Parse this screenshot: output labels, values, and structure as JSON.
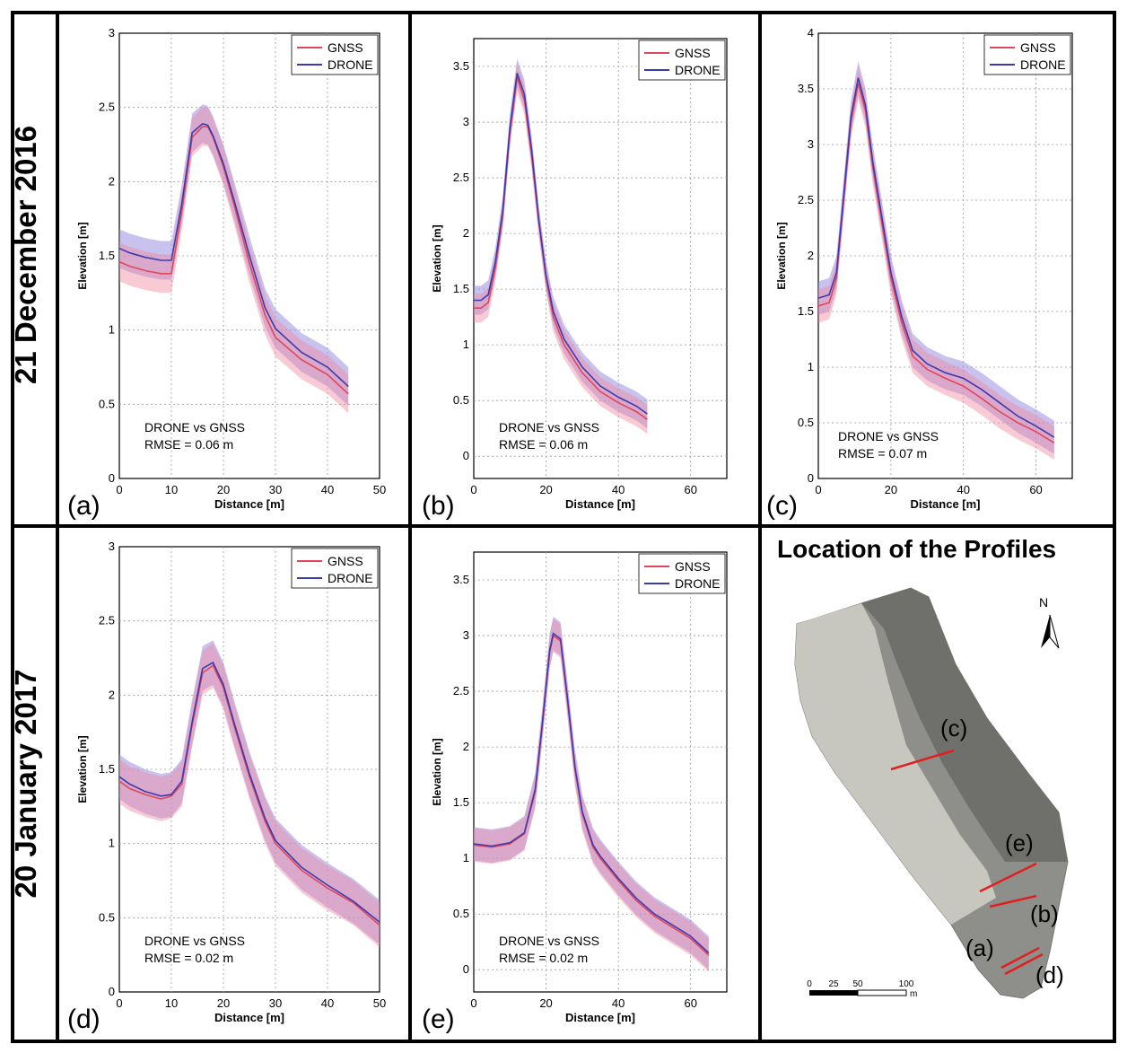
{
  "row_labels": [
    "21 December 2016",
    "20 January 2017"
  ],
  "location_panel": {
    "title": "Location of the Profiles",
    "north_label": "N",
    "scale_ticks": [
      "0",
      "25",
      "50",
      "100"
    ],
    "scale_unit": "m",
    "profile_labels": [
      "(c)",
      "(e)",
      "(b)",
      "(a)",
      "(d)"
    ]
  },
  "legend": {
    "gnss": "GNSS",
    "drone": "DRONE"
  },
  "colors": {
    "gnss": "#e0475a",
    "drone": "#3b3bb0",
    "band": "#9b8fe0",
    "map_bg": "#8b8c88"
  },
  "chart_data": [
    {
      "panel": "(a)",
      "type": "line",
      "xlabel": "Distance [m]",
      "ylabel": "Elevation [m]",
      "xlim": [
        0,
        50
      ],
      "ylim": [
        0,
        3
      ],
      "xticks": [
        0,
        10,
        20,
        30,
        40,
        50
      ],
      "yticks": [
        0,
        0.5,
        1,
        1.5,
        2,
        2.5,
        3
      ],
      "annotation": [
        "DRONE vs GNSS",
        "RMSE = 0.06 m"
      ],
      "band_width": 0.13,
      "series": [
        {
          "name": "GNSS",
          "x": [
            0,
            2,
            5,
            8,
            10,
            12,
            14,
            16,
            17,
            18,
            20,
            22,
            25,
            28,
            30,
            35,
            40,
            44
          ],
          "y": [
            1.46,
            1.43,
            1.4,
            1.38,
            1.38,
            1.8,
            2.3,
            2.37,
            2.37,
            2.3,
            2.1,
            1.85,
            1.45,
            1.1,
            0.95,
            0.8,
            0.7,
            0.57
          ]
        },
        {
          "name": "DRONE",
          "x": [
            0,
            2,
            5,
            8,
            10,
            12,
            14,
            16,
            17,
            18,
            20,
            22,
            25,
            28,
            30,
            35,
            40,
            44
          ],
          "y": [
            1.55,
            1.52,
            1.49,
            1.47,
            1.47,
            1.85,
            2.33,
            2.39,
            2.38,
            2.31,
            2.12,
            1.88,
            1.5,
            1.15,
            1.01,
            0.85,
            0.75,
            0.62
          ]
        }
      ]
    },
    {
      "panel": "(b)",
      "type": "line",
      "xlabel": "Distance [m]",
      "ylabel": "Elevation [m]",
      "xlim": [
        0,
        70
      ],
      "ylim": [
        -0.2,
        3.75
      ],
      "xticks": [
        0,
        20,
        40,
        60
      ],
      "yticks": [
        0,
        0.5,
        1,
        1.5,
        2,
        2.5,
        3,
        3.5
      ],
      "annotation": [
        "DRONE vs GNSS",
        "RMSE = 0.06 m"
      ],
      "band_width": 0.13,
      "series": [
        {
          "name": "GNSS",
          "x": [
            0,
            2,
            4,
            6,
            8,
            10,
            12,
            14,
            16,
            18,
            20,
            22,
            25,
            30,
            35,
            40,
            45,
            48
          ],
          "y": [
            1.33,
            1.33,
            1.38,
            1.7,
            2.15,
            2.9,
            3.4,
            3.2,
            2.7,
            2.1,
            1.6,
            1.25,
            1.0,
            0.75,
            0.58,
            0.48,
            0.4,
            0.33
          ]
        },
        {
          "name": "DRONE",
          "x": [
            0,
            2,
            4,
            6,
            8,
            10,
            12,
            14,
            16,
            18,
            20,
            22,
            25,
            30,
            35,
            40,
            45,
            48
          ],
          "y": [
            1.4,
            1.4,
            1.45,
            1.75,
            2.2,
            2.95,
            3.44,
            3.25,
            2.75,
            2.12,
            1.62,
            1.3,
            1.05,
            0.8,
            0.63,
            0.53,
            0.45,
            0.38
          ]
        }
      ]
    },
    {
      "panel": "(c)",
      "type": "line",
      "xlabel": "Distance [m]",
      "ylabel": "Elevation [m]",
      "xlim": [
        0,
        70
      ],
      "ylim": [
        0,
        4
      ],
      "xticks": [
        0,
        20,
        40,
        60
      ],
      "yticks": [
        0,
        0.5,
        1,
        1.5,
        2,
        2.5,
        3,
        3.5,
        4
      ],
      "annotation": [
        "DRONE vs GNSS",
        "RMSE = 0.07 m"
      ],
      "band_width": 0.15,
      "series": [
        {
          "name": "GNSS",
          "x": [
            0,
            3,
            5,
            7,
            9,
            11,
            13,
            15,
            18,
            20,
            23,
            26,
            30,
            35,
            40,
            45,
            50,
            55,
            60,
            65
          ],
          "y": [
            1.55,
            1.58,
            1.8,
            2.5,
            3.2,
            3.55,
            3.3,
            2.8,
            2.2,
            1.8,
            1.4,
            1.1,
            0.98,
            0.9,
            0.83,
            0.72,
            0.6,
            0.5,
            0.42,
            0.32
          ]
        },
        {
          "name": "DRONE",
          "x": [
            0,
            3,
            5,
            7,
            9,
            11,
            13,
            15,
            18,
            20,
            23,
            26,
            30,
            35,
            40,
            45,
            50,
            55,
            60,
            65
          ],
          "y": [
            1.62,
            1.65,
            1.85,
            2.55,
            3.25,
            3.6,
            3.35,
            2.85,
            2.25,
            1.85,
            1.45,
            1.15,
            1.03,
            0.95,
            0.9,
            0.8,
            0.68,
            0.56,
            0.47,
            0.37
          ]
        }
      ]
    },
    {
      "panel": "(d)",
      "type": "line",
      "xlabel": "Distance [m]",
      "ylabel": "Elevation [m]",
      "xlim": [
        0,
        50
      ],
      "ylim": [
        0,
        3
      ],
      "xticks": [
        0,
        10,
        20,
        30,
        40,
        50
      ],
      "yticks": [
        0,
        0.5,
        1,
        1.5,
        2,
        2.5,
        3
      ],
      "annotation": [
        "DRONE vs GNSS",
        "RMSE = 0.02 m"
      ],
      "band_width": 0.15,
      "series": [
        {
          "name": "GNSS",
          "x": [
            0,
            2,
            5,
            8,
            10,
            12,
            14,
            16,
            18,
            20,
            22,
            25,
            28,
            30,
            35,
            40,
            45,
            50
          ],
          "y": [
            1.42,
            1.37,
            1.33,
            1.3,
            1.32,
            1.4,
            1.8,
            2.15,
            2.2,
            2.05,
            1.8,
            1.45,
            1.15,
            1.0,
            0.82,
            0.7,
            0.6,
            0.45
          ]
        },
        {
          "name": "DRONE",
          "x": [
            0,
            2,
            5,
            8,
            10,
            12,
            14,
            16,
            18,
            20,
            22,
            25,
            28,
            30,
            35,
            40,
            45,
            50
          ],
          "y": [
            1.45,
            1.4,
            1.35,
            1.32,
            1.33,
            1.42,
            1.82,
            2.18,
            2.22,
            2.07,
            1.82,
            1.47,
            1.17,
            1.02,
            0.84,
            0.72,
            0.61,
            0.47
          ]
        }
      ]
    },
    {
      "panel": "(e)",
      "type": "line",
      "xlabel": "Distance [m]",
      "ylabel": "Elevation [m]",
      "xlim": [
        0,
        70
      ],
      "ylim": [
        -0.2,
        3.75
      ],
      "xticks": [
        0,
        20,
        40,
        60
      ],
      "yticks": [
        0,
        0.5,
        1,
        1.5,
        2,
        2.5,
        3,
        3.5
      ],
      "annotation": [
        "DRONE vs GNSS",
        "RMSE = 0.02 m"
      ],
      "band_width": 0.15,
      "series": [
        {
          "name": "GNSS",
          "x": [
            0,
            5,
            10,
            14,
            17,
            19,
            21,
            22,
            24,
            26,
            28,
            30,
            33,
            35,
            40,
            45,
            50,
            55,
            60,
            65
          ],
          "y": [
            1.12,
            1.1,
            1.13,
            1.22,
            1.6,
            2.2,
            2.85,
            3.0,
            2.95,
            2.4,
            1.8,
            1.4,
            1.1,
            1.0,
            0.8,
            0.62,
            0.48,
            0.38,
            0.28,
            0.13
          ]
        },
        {
          "name": "DRONE",
          "x": [
            0,
            5,
            10,
            14,
            17,
            19,
            21,
            22,
            24,
            26,
            28,
            30,
            33,
            35,
            40,
            45,
            50,
            55,
            60,
            65
          ],
          "y": [
            1.13,
            1.11,
            1.14,
            1.23,
            1.62,
            2.22,
            2.87,
            3.02,
            2.97,
            2.42,
            1.82,
            1.42,
            1.12,
            1.02,
            0.82,
            0.64,
            0.5,
            0.4,
            0.3,
            0.15
          ]
        }
      ]
    }
  ]
}
